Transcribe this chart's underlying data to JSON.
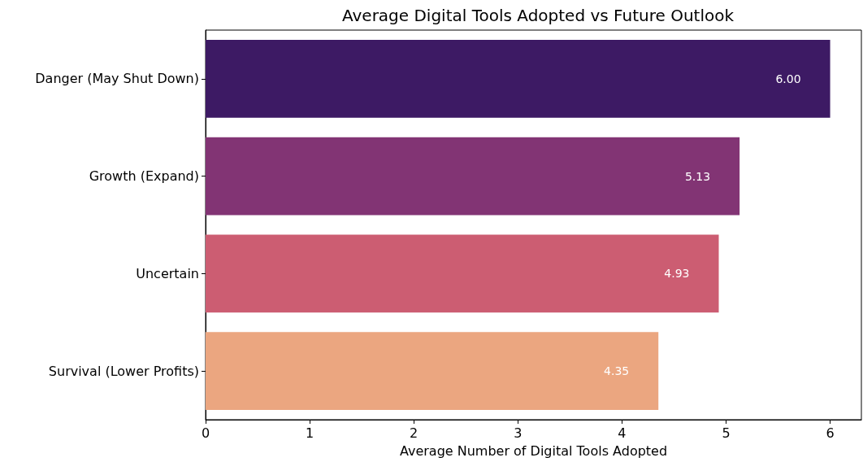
{
  "chart_data": {
    "type": "bar",
    "orientation": "horizontal",
    "title": "Average Digital Tools Adopted vs Future Outlook",
    "xlabel": "Average Number of Digital Tools Adopted",
    "categories": [
      "Danger (May Shut Down)",
      "Growth (Expand)",
      "Uncertain",
      "Survival (Lower Profits)"
    ],
    "values": [
      6.0,
      5.13,
      4.93,
      4.35
    ],
    "colors": [
      "#3d1a64",
      "#823474",
      "#cc5d72",
      "#eba680"
    ],
    "value_labels": [
      "6.00",
      "5.13",
      "4.93",
      "4.35"
    ],
    "xlim": [
      0,
      6.3
    ],
    "xticks": [
      0,
      1,
      2,
      3,
      4,
      5,
      6
    ],
    "grid": false
  }
}
